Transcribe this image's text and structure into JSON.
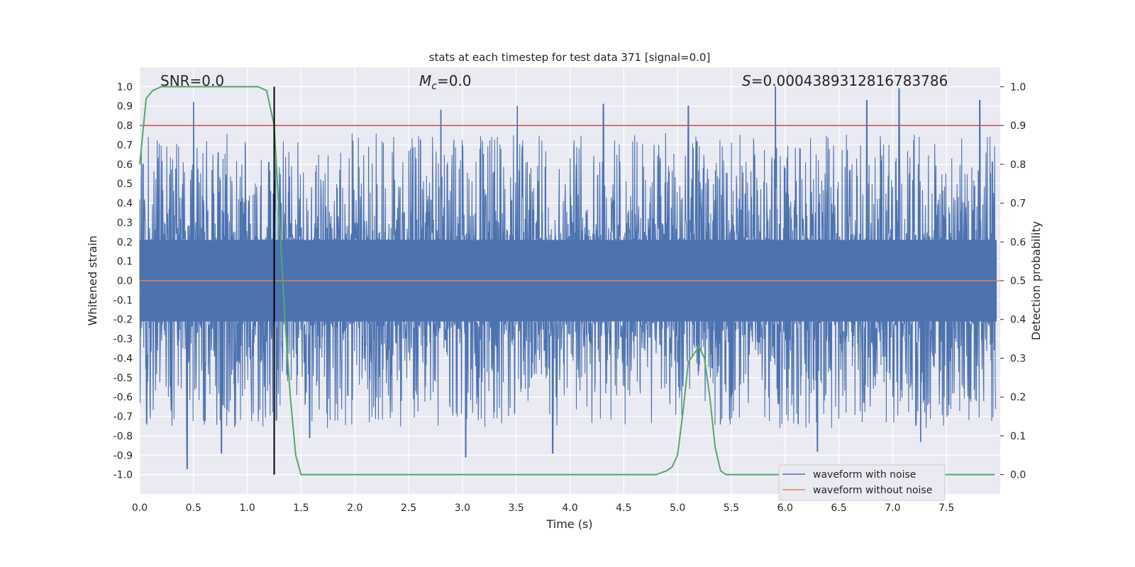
{
  "chart_data": {
    "type": "line",
    "title": "stats at each timestep for test data 371 [signal=0.0]",
    "xlabel": "Time (s)",
    "ylabel": "Whitened strain",
    "y2label": "Detection probability",
    "xlim": [
      0.0,
      8.0
    ],
    "ylim": [
      -1.1,
      1.1
    ],
    "y2lim": [
      -0.05,
      1.05
    ],
    "xticks": [
      "0.0",
      "0.5",
      "1.0",
      "1.5",
      "2.0",
      "2.5",
      "3.0",
      "3.5",
      "4.0",
      "4.5",
      "5.0",
      "5.5",
      "6.0",
      "6.5",
      "7.0",
      "7.5"
    ],
    "yticks": [
      "1.0",
      "0.9",
      "0.8",
      "0.7",
      "0.6",
      "0.5",
      "0.4",
      "0.3",
      "0.2",
      "0.1",
      "0.0",
      "-0.1",
      "-0.2",
      "-0.3",
      "-0.4",
      "-0.5",
      "-0.6",
      "-0.7",
      "-0.8",
      "-0.9",
      "-1.0"
    ],
    "y2ticks": [
      "1.0",
      "0.9",
      "0.8",
      "0.7",
      "0.6",
      "0.5",
      "0.4",
      "0.3",
      "0.2",
      "0.1",
      "0.0"
    ],
    "grid": true,
    "annotations": {
      "snr": "SNR=0.0",
      "mc_symbol": "M",
      "mc_sub": "c",
      "mc_value": "=0.0",
      "s_symbol": "S",
      "s_value": "=0.0004389312816783786"
    },
    "threshold": {
      "value": 0.9,
      "axis": "right",
      "color": "#c44e52"
    },
    "vline": {
      "x": 1.25,
      "ymin": -1.0,
      "ymax": 1.0,
      "color": "#000000"
    },
    "series": [
      {
        "name": "waveform with noise",
        "color": "#4c72b0",
        "style": "noise",
        "envelope_core": 0.21,
        "peaks": [
          {
            "x": 0.03,
            "y": 0.6
          },
          {
            "x": 0.5,
            "y": 0.92
          },
          {
            "x": 0.73,
            "y": 0.66
          },
          {
            "x": 1.2,
            "y": 0.61
          },
          {
            "x": 2.8,
            "y": 0.88
          },
          {
            "x": 3.51,
            "y": 0.9
          },
          {
            "x": 4.31,
            "y": 0.91
          },
          {
            "x": 5.1,
            "y": 0.9
          },
          {
            "x": 5.91,
            "y": 1.0
          },
          {
            "x": 6.76,
            "y": 0.93
          },
          {
            "x": 7.06,
            "y": 0.99
          },
          {
            "x": 7.81,
            "y": 0.93
          },
          {
            "x": 0.44,
            "y": -0.97
          },
          {
            "x": 0.76,
            "y": -0.89
          },
          {
            "x": 3.03,
            "y": -0.91
          },
          {
            "x": 3.84,
            "y": -0.89
          },
          {
            "x": 6.3,
            "y": -0.88
          },
          {
            "x": 7.26,
            "y": -0.83
          },
          {
            "x": 1.27,
            "y": -0.72
          },
          {
            "x": 1.58,
            "y": -0.81
          }
        ]
      },
      {
        "name": "waveform without noise",
        "color": "#dd8452",
        "style": "line",
        "x": [
          0.0,
          8.0
        ],
        "y": [
          0.0,
          0.0
        ]
      },
      {
        "name": "detection probability",
        "color": "#55a868",
        "style": "line",
        "axis": "right",
        "x": [
          0.0,
          0.06,
          0.12,
          0.2,
          0.5,
          1.0,
          1.1,
          1.18,
          1.25,
          1.3,
          1.35,
          1.4,
          1.45,
          1.5,
          1.55,
          2.0,
          2.1,
          2.2,
          4.5,
          4.8,
          4.9,
          4.95,
          5.0,
          5.05,
          5.1,
          5.15,
          5.2,
          5.25,
          5.3,
          5.35,
          5.4,
          5.45,
          5.5,
          7.95
        ],
        "y": [
          0.8,
          0.97,
          0.99,
          1.0,
          1.0,
          1.0,
          1.0,
          0.99,
          0.9,
          0.65,
          0.4,
          0.2,
          0.05,
          0.0,
          0.0,
          0.0,
          0.0,
          0.0,
          0.0,
          0.0,
          0.01,
          0.02,
          0.05,
          0.16,
          0.29,
          0.31,
          0.33,
          0.3,
          0.2,
          0.07,
          0.01,
          0.0,
          0.0,
          0.0
        ]
      }
    ],
    "legend": {
      "placement": "lower-right",
      "entries": [
        {
          "label": "waveform with noise",
          "color": "#4c72b0"
        },
        {
          "label": "waveform without noise",
          "color": "#dd8452"
        }
      ]
    }
  }
}
